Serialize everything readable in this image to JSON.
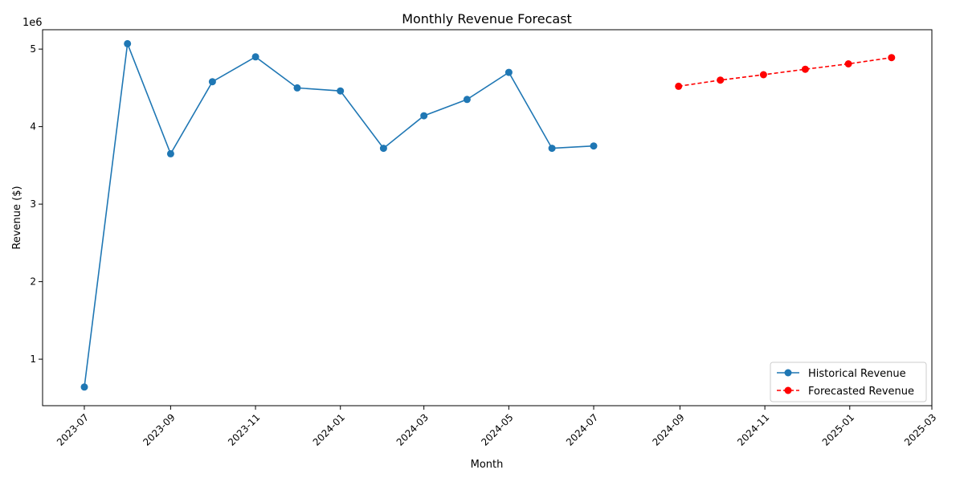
{
  "chart_data": {
    "type": "line",
    "title": "Monthly Revenue Forecast",
    "xlabel": "Month",
    "ylabel": "Revenue ($)",
    "y_offset_label": "1e6",
    "y_multiplier": 1000000,
    "xlim": [
      "2023-06-01",
      "2025-03-01"
    ],
    "ylim": [
      0.4,
      5.25
    ],
    "x_ticks": [
      "2023-07",
      "2023-09",
      "2023-11",
      "2024-01",
      "2024-03",
      "2024-05",
      "2024-07",
      "2024-09",
      "2024-11",
      "2025-01",
      "2025-03"
    ],
    "y_ticks": [
      "1",
      "2",
      "3",
      "4",
      "5"
    ],
    "grid": false,
    "legend_position": "lower-right",
    "series": [
      {
        "name": "Historical Revenue",
        "color": "#1f77b4",
        "style": "solid",
        "x": [
          "2023-07-01",
          "2023-08-01",
          "2023-09-01",
          "2023-10-01",
          "2023-11-01",
          "2023-12-01",
          "2024-01-01",
          "2024-02-01",
          "2024-03-01",
          "2024-04-01",
          "2024-05-01",
          "2024-06-01",
          "2024-07-01"
        ],
        "values": [
          0.64,
          5.07,
          3.65,
          4.58,
          4.9,
          4.5,
          4.46,
          3.72,
          4.14,
          4.35,
          4.7,
          3.72,
          3.75
        ]
      },
      {
        "name": "Forecasted Revenue",
        "color": "#ff0000",
        "style": "dashed",
        "x": [
          "2024-08-31",
          "2024-09-30",
          "2024-10-31",
          "2024-11-30",
          "2024-12-31",
          "2025-01-31"
        ],
        "values": [
          4.52,
          4.6,
          4.67,
          4.74,
          4.81,
          4.89
        ]
      }
    ]
  }
}
